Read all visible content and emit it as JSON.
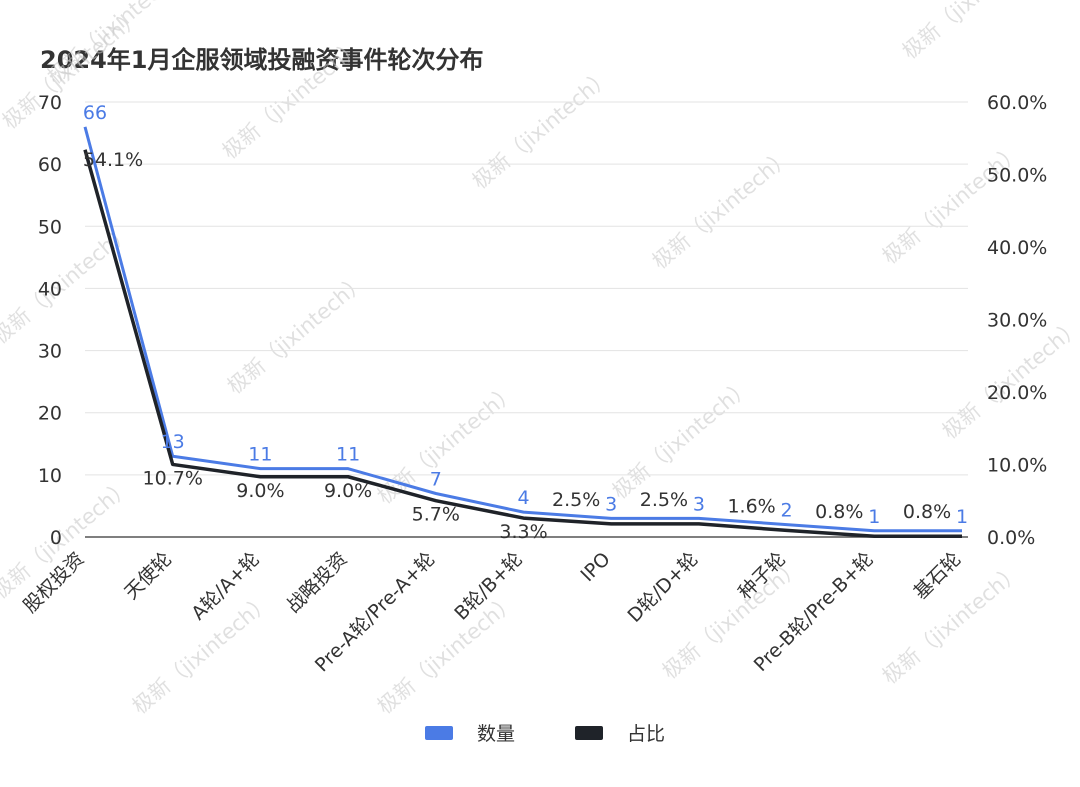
{
  "watermark_text": "极新（jixintech）",
  "chart_data": {
    "type": "line",
    "title": "2024年1月企服领域投融资事件轮次分布",
    "categories": [
      "股权投资",
      "天使轮",
      "A轮/A+轮",
      "战略投资",
      "Pre-A轮/Pre-A+轮",
      "B轮/B+轮",
      "IPO",
      "D轮/D+轮",
      "种子轮",
      "Pre-B轮/Pre-B+轮",
      "基石轮"
    ],
    "series": [
      {
        "name": "数量",
        "axis": "left",
        "color": "#4b7be5",
        "values": [
          66,
          13,
          11,
          11,
          7,
          4,
          3,
          3,
          2,
          1,
          1
        ],
        "labels": [
          "66",
          "13",
          "11",
          "11",
          "7",
          "4",
          "3",
          "3",
          "2",
          "1",
          "1"
        ]
      },
      {
        "name": "占比",
        "axis": "right",
        "color": "#1f2329",
        "values": [
          54.1,
          10.7,
          9.0,
          9.0,
          5.7,
          3.3,
          2.5,
          2.5,
          1.6,
          0.8,
          0.8
        ],
        "labels": [
          "54.1%",
          "10.7%",
          "9.0%",
          "9.0%",
          "5.7%",
          "3.3%",
          "2.5%",
          "2.5%",
          "1.6%",
          "0.8%",
          "0.8%"
        ]
      }
    ],
    "y_left": {
      "min": 0,
      "max": 70,
      "ticks": [
        "0",
        "10",
        "20",
        "30",
        "40",
        "50",
        "60",
        "70"
      ]
    },
    "y_right": {
      "min": 0,
      "max": 60,
      "ticks": [
        "0.0%",
        "10.0%",
        "20.0%",
        "30.0%",
        "40.0%",
        "50.0%",
        "60.0%"
      ]
    },
    "grid": true,
    "legend_position": "bottom"
  }
}
